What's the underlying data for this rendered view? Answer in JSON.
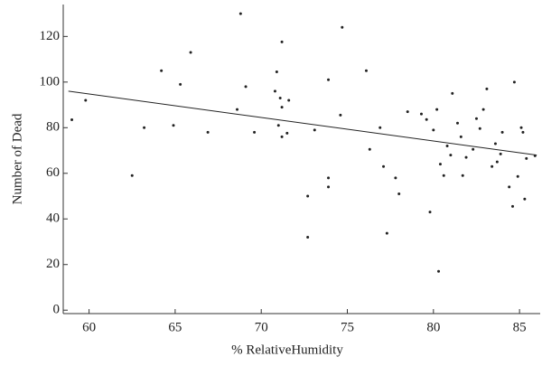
{
  "chart_data": {
    "type": "scatter",
    "xlabel": "% RelativeHumidity",
    "ylabel": "Number of Dead",
    "xlim": [
      58.5,
      86.2
    ],
    "ylim": [
      -1.5,
      134
    ],
    "xticks": [
      60,
      65,
      70,
      75,
      80,
      85
    ],
    "yticks": [
      0,
      20,
      40,
      60,
      80,
      100,
      120
    ],
    "color": "#222222",
    "x": [
      59,
      59.8,
      63.2,
      62.5,
      64.2,
      65.9,
      65.3,
      64.9,
      66.9,
      68.8,
      69.1,
      68.6,
      69.6,
      70.9,
      70.8,
      71.1,
      71.2,
      71.6,
      71.2,
      71,
      71.2,
      71.5,
      72.7,
      72.7,
      73.9,
      73.9,
      73.9,
      74.7,
      74.6,
      73.1,
      76.1,
      76.3,
      76.9,
      77.1,
      78,
      77.3,
      77.8,
      78.5,
      79.3,
      79.6,
      80,
      80.2,
      80.3,
      80.4,
      79.8,
      80.8,
      80.6,
      81,
      81.1,
      81.4,
      81.6,
      81.7,
      81.9,
      82.3,
      82.5,
      82.7,
      82.9,
      83.1,
      83.6,
      83.4,
      83.7,
      83.9,
      84,
      84.7,
      84.4,
      84.6,
      85.1,
      85.2,
      85.3,
      85.4,
      85.9,
      84.9
    ],
    "values": [
      83.5,
      92,
      80,
      59,
      105,
      113,
      99,
      81,
      78,
      130,
      98,
      88,
      78,
      104.5,
      96,
      93,
      89,
      92,
      117.6,
      81,
      76,
      77.6,
      50,
      32,
      101,
      58,
      54,
      124,
      85.5,
      79,
      105,
      70.5,
      80,
      63,
      51,
      33.7,
      58,
      87,
      86,
      83.6,
      79,
      88,
      17,
      64,
      43,
      72,
      59,
      68,
      95,
      82,
      76,
      59,
      67,
      70.5,
      84,
      79.6,
      88,
      97,
      73,
      63,
      65,
      68.5,
      78,
      100,
      54,
      45.5,
      80,
      78,
      48.7,
      66.5,
      67.7,
      58.6
    ],
    "fit": {
      "x": [
        58.8,
        86
      ],
      "values": [
        96,
        68
      ]
    }
  }
}
